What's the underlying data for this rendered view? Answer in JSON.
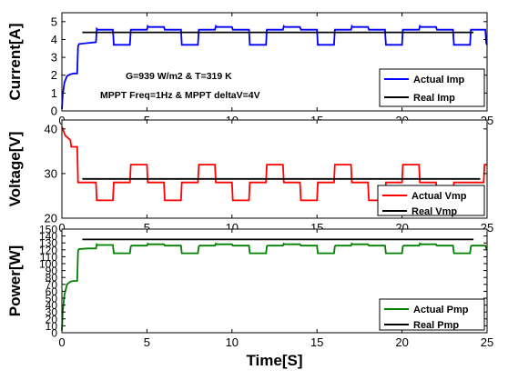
{
  "chart_data": [
    {
      "type": "line",
      "ylabel": "Current[A]",
      "xlim": [
        0,
        25
      ],
      "ylim": [
        0,
        5.5
      ],
      "xticks": [
        "0",
        "5",
        "10",
        "15",
        "20",
        "25"
      ],
      "yticks": [
        "0",
        "1",
        "2",
        "3",
        "4",
        "5"
      ],
      "annotations": [
        "G=939 W/m2 & T=319 K",
        "MPPT Freq=1Hz & MPPT deltaV=4V"
      ],
      "legend": {
        "position": "bottom-right"
      },
      "grid": false,
      "series": [
        {
          "name": "Actual Imp",
          "color": "#0000ff",
          "x": [
            0,
            0.05,
            0.15,
            0.3,
            0.5,
            0.7,
            0.9,
            0.95,
            1.0,
            1.5,
            2.0,
            2.05,
            2.1,
            3.0,
            3.05,
            3.1,
            4.0,
            4.05,
            4.1,
            5.0,
            5.05,
            5.1,
            6.0,
            6.05,
            6.1,
            7.0,
            7.05,
            7.1,
            8.0,
            8.05,
            8.1,
            9.0,
            9.05,
            9.1,
            10.0,
            10.05,
            10.1,
            11.0,
            11.05,
            11.1,
            12.0,
            12.05,
            12.1,
            13.0,
            13.05,
            13.1,
            14.0,
            14.05,
            14.1,
            15.0,
            15.05,
            15.1,
            16.0,
            16.05,
            16.1,
            17.0,
            17.05,
            17.1,
            18.0,
            18.05,
            18.1,
            19.0,
            19.05,
            19.1,
            20.0,
            20.05,
            20.1,
            21.0,
            21.05,
            21.1,
            22.0,
            22.05,
            22.1,
            23.0,
            23.05,
            23.1,
            24.0,
            24.05,
            24.1,
            24.9,
            24.95,
            25.0
          ],
          "values": [
            0.1,
            0.9,
            1.6,
            1.95,
            2.05,
            2.1,
            2.1,
            3.6,
            3.75,
            3.8,
            3.85,
            4.6,
            4.55,
            4.55,
            3.7,
            3.7,
            3.7,
            4.55,
            4.55,
            4.55,
            4.75,
            4.7,
            4.7,
            4.55,
            4.55,
            4.55,
            3.7,
            3.7,
            3.7,
            4.55,
            4.55,
            4.55,
            4.75,
            4.7,
            4.7,
            4.55,
            4.55,
            4.55,
            3.7,
            3.7,
            3.7,
            4.55,
            4.55,
            4.55,
            4.75,
            4.7,
            4.7,
            4.55,
            4.55,
            4.55,
            3.7,
            3.7,
            3.7,
            4.55,
            4.55,
            4.55,
            4.75,
            4.7,
            4.7,
            4.55,
            4.55,
            4.55,
            3.7,
            3.7,
            3.7,
            4.55,
            4.55,
            4.55,
            4.75,
            4.7,
            4.7,
            4.55,
            4.55,
            4.55,
            3.7,
            3.7,
            3.7,
            4.55,
            4.55,
            4.55,
            3.8,
            3.7
          ]
        },
        {
          "name": "Real Imp",
          "color": "#000000",
          "x": [
            1.2,
            24.2
          ],
          "values": [
            4.4,
            4.4
          ]
        }
      ]
    },
    {
      "type": "line",
      "ylabel": "Voltage[V]",
      "xlim": [
        0,
        25
      ],
      "ylim": [
        20,
        42
      ],
      "xticks": [
        "0",
        "5",
        "10",
        "15",
        "20",
        "25"
      ],
      "yticks": [
        "20",
        "30",
        "40"
      ],
      "legend": {
        "position": "bottom-right"
      },
      "grid": false,
      "series": [
        {
          "name": "Actual Vmp",
          "color": "#ff0000",
          "x": [
            0,
            0.2,
            0.5,
            0.55,
            0.6,
            0.9,
            0.95,
            1.0,
            2.0,
            2.05,
            3.0,
            3.05,
            4.0,
            4.05,
            5.0,
            5.05,
            6.0,
            6.05,
            7.0,
            7.05,
            8.0,
            8.05,
            9.0,
            9.05,
            10.0,
            10.05,
            11.0,
            11.05,
            12.0,
            12.05,
            13.0,
            13.05,
            14.0,
            14.05,
            15.0,
            15.05,
            16.0,
            16.05,
            17.0,
            17.05,
            18.0,
            18.05,
            19.0,
            19.05,
            20.0,
            20.05,
            21.0,
            21.05,
            22.0,
            22.05,
            23.0,
            23.05,
            24.0,
            24.05,
            24.8,
            24.85,
            25.0
          ],
          "values": [
            40.5,
            38.5,
            37.5,
            36.0,
            36.0,
            36.0,
            28.0,
            28.0,
            28.0,
            24.0,
            24.0,
            28.0,
            28.0,
            32.0,
            32.0,
            28.0,
            28.0,
            24.0,
            24.0,
            28.0,
            28.0,
            32.0,
            32.0,
            28.0,
            28.0,
            24.0,
            24.0,
            28.0,
            28.0,
            32.0,
            32.0,
            28.0,
            28.0,
            24.0,
            24.0,
            28.0,
            28.0,
            32.0,
            32.0,
            28.0,
            28.0,
            24.0,
            24.0,
            28.0,
            28.0,
            32.0,
            32.0,
            28.0,
            28.0,
            24.0,
            24.0,
            28.0,
            28.0,
            28.0,
            28.0,
            32.0,
            32.0
          ]
        },
        {
          "name": "Real Vmp",
          "color": "#000000",
          "x": [
            1.2,
            24.6
          ],
          "values": [
            28.8,
            28.8
          ]
        }
      ]
    },
    {
      "type": "line",
      "ylabel": "Power[W]",
      "xlabel": "Time[S]",
      "xlim": [
        0,
        25
      ],
      "ylim": [
        0,
        150
      ],
      "xticks": [
        "0",
        "5",
        "10",
        "15",
        "20",
        "25"
      ],
      "yticks": [
        "0",
        "10",
        "20",
        "30",
        "40",
        "50",
        "60",
        "70",
        "80",
        "90",
        "100",
        "110",
        "120",
        "130",
        "140",
        "150"
      ],
      "legend": {
        "position": "bottom-right"
      },
      "grid": false,
      "series": [
        {
          "name": "Actual Pmp",
          "color": "#008000",
          "x": [
            0,
            0.05,
            0.15,
            0.3,
            0.5,
            0.7,
            0.9,
            0.95,
            1.0,
            1.5,
            2.0,
            2.05,
            2.1,
            3.0,
            3.05,
            3.1,
            4.0,
            4.05,
            4.1,
            5.0,
            5.05,
            5.1,
            6.0,
            6.05,
            6.1,
            7.0,
            7.05,
            7.1,
            8.0,
            8.05,
            8.1,
            9.0,
            9.05,
            9.1,
            10.0,
            10.05,
            10.1,
            11.0,
            11.05,
            11.1,
            12.0,
            12.05,
            12.1,
            13.0,
            13.05,
            13.1,
            14.0,
            14.05,
            14.1,
            15.0,
            15.05,
            15.1,
            16.0,
            16.05,
            16.1,
            17.0,
            17.05,
            17.1,
            18.0,
            18.05,
            18.1,
            19.0,
            19.05,
            19.1,
            20.0,
            20.05,
            20.1,
            21.0,
            21.05,
            21.1,
            22.0,
            22.05,
            22.1,
            23.0,
            23.05,
            23.1,
            24.0,
            24.05,
            24.1,
            24.9,
            24.95,
            25.0
          ],
          "values": [
            3,
            30,
            55,
            70,
            74,
            75,
            75,
            118,
            121,
            122,
            122,
            128,
            127,
            127,
            115,
            115,
            115,
            125,
            126,
            126,
            129,
            128,
            128,
            126,
            126,
            126,
            115,
            115,
            115,
            125,
            126,
            126,
            129,
            128,
            128,
            126,
            126,
            126,
            115,
            115,
            115,
            125,
            126,
            126,
            129,
            128,
            128,
            126,
            126,
            126,
            115,
            115,
            115,
            125,
            126,
            126,
            129,
            128,
            128,
            126,
            126,
            126,
            115,
            115,
            115,
            125,
            126,
            126,
            129,
            128,
            128,
            126,
            126,
            126,
            115,
            115,
            115,
            125,
            126,
            126,
            122,
            120
          ]
        },
        {
          "name": "Real Pmp",
          "color": "#000000",
          "x": [
            1.2,
            24.2
          ],
          "values": [
            135,
            135
          ]
        }
      ]
    }
  ]
}
